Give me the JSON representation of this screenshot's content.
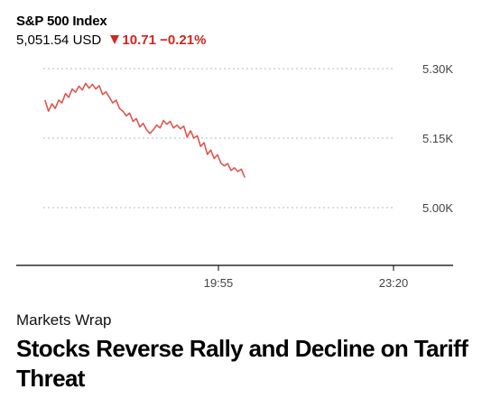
{
  "quote": {
    "name": "S&P 500 Index",
    "price": "5,051.54",
    "currency": "USD",
    "change": "10.71",
    "change_pct": "−0.21%",
    "direction_icon": "down-triangle-icon",
    "change_color": "#d0261f"
  },
  "chart_data": {
    "type": "line",
    "y_tick_labels": [
      "5.30K",
      "5.15K",
      "5.00K"
    ],
    "y_ticks": [
      5300,
      5150,
      5000
    ],
    "ylim": [
      4880,
      5330
    ],
    "x_tick_labels": [
      "19:55",
      "23:20"
    ],
    "line_color": "#e0564f",
    "grid": "dotted horizontal",
    "series": [
      {
        "values": [
          5231,
          5208,
          5224,
          5214,
          5232,
          5226,
          5246,
          5238,
          5256,
          5249,
          5262,
          5254,
          5268,
          5258,
          5266,
          5256,
          5263,
          5244,
          5250,
          5238,
          5226,
          5232,
          5214,
          5208,
          5198,
          5204,
          5186,
          5192,
          5174,
          5182,
          5168,
          5160,
          5168,
          5178,
          5172,
          5188,
          5180,
          5186,
          5172,
          5178,
          5170,
          5176,
          5152,
          5166,
          5150,
          5155,
          5132,
          5140,
          5115,
          5124,
          5106,
          5114,
          5096,
          5090,
          5095,
          5080,
          5086,
          5078,
          5083,
          5066
        ]
      }
    ]
  },
  "article": {
    "kicker": "Markets Wrap",
    "headline": "Stocks Reverse Rally and Decline on Tariff Threat"
  }
}
